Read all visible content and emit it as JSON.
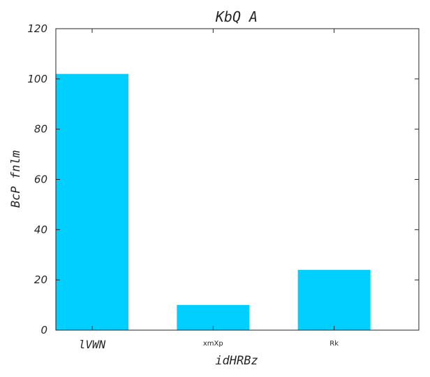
{
  "chart_data": {
    "type": "bar",
    "title": "KbQ A",
    "xlabel": "idHRBz",
    "ylabel": "BcP fnlm",
    "categories": [
      "lVWN",
      "xmXp",
      "Rk"
    ],
    "values": [
      102,
      10,
      24
    ],
    "ylim": [
      0,
      120
    ],
    "yticks": [
      "0",
      "20",
      "40",
      "60",
      "80",
      "100",
      "120"
    ],
    "bar_color": "#00cfff",
    "grid": false,
    "legend": "none"
  }
}
